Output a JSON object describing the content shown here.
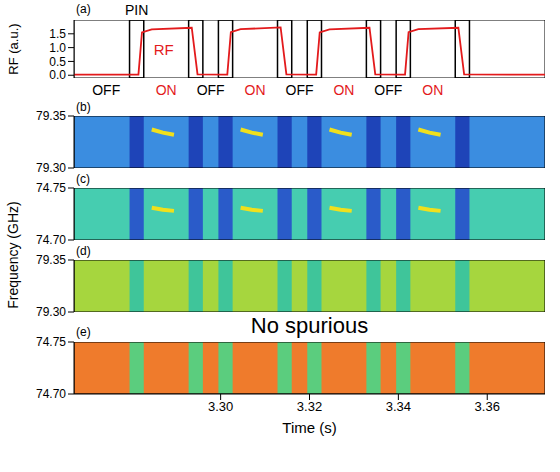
{
  "chart_data": [
    {
      "panel": "(a)",
      "type": "line",
      "ylabel": "RF (a.u.)",
      "annotations": [
        "PIN",
        "RF"
      ],
      "xlim": [
        3.267,
        3.373
      ],
      "xticks": [
        {
          "value": 3.3,
          "label": "3.30"
        },
        3.32,
        3.34,
        3.36
      ],
      "tick_labels": "y",
      "ylim": [
        -0.1,
        2.0
      ],
      "yticks": [
        {
          "value": 0,
          "label": "0.0"
        },
        0.5,
        {
          "value": 1,
          "label": "1.0"
        },
        1.5
      ],
      "series": [
        {
          "color": "#e31a1c",
          "x": [
            3.267,
            3.2815,
            3.2823,
            3.2845,
            3.2935,
            3.2948,
            3.3015,
            3.3023,
            3.3045,
            3.3135,
            3.3148,
            3.3215,
            3.3223,
            3.3245,
            3.3335,
            3.3348,
            3.3415,
            3.3423,
            3.3445,
            3.3535,
            3.3548,
            3.373
          ],
          "values": [
            0.02,
            0.02,
            1.55,
            1.66,
            1.72,
            0.03,
            0.02,
            1.56,
            1.67,
            1.73,
            0.03,
            0.02,
            1.55,
            1.66,
            1.72,
            0.03,
            0.02,
            1.56,
            1.67,
            1.72,
            0.03,
            0.02
          ]
        }
      ],
      "boxes": {
        "color": "#000000",
        "x": [
          [
            3.2795,
            3.2827
          ],
          [
            3.2928,
            3.296
          ],
          [
            3.2995,
            3.3027
          ],
          [
            3.3128,
            3.316
          ],
          [
            3.3195,
            3.3227
          ],
          [
            3.3328,
            3.336
          ],
          [
            3.3395,
            3.3427
          ],
          [
            3.3528,
            3.356
          ]
        ]
      },
      "states": [
        {
          "label": "OFF",
          "x": [
            3.267,
            3.2815
          ]
        },
        {
          "label": "ON",
          "x": [
            3.2815,
            3.294
          ]
        },
        {
          "label": "OFF",
          "x": [
            3.294,
            3.3015
          ]
        },
        {
          "label": "ON",
          "x": [
            3.3015,
            3.314
          ]
        },
        {
          "label": "OFF",
          "x": [
            3.314,
            3.3215
          ]
        },
        {
          "label": "ON",
          "x": [
            3.3215,
            3.334
          ]
        },
        {
          "label": "OFF",
          "x": [
            3.334,
            3.3415
          ]
        },
        {
          "label": "ON",
          "x": [
            3.3415,
            3.354
          ]
        }
      ]
    },
    {
      "panel": "(b)",
      "type": "heatmap",
      "color": "#3b8de0",
      "xlim": [
        3.267,
        3.373
      ],
      "xticks": [
        {
          "value": 3.3,
          "label": "3.30"
        },
        3.32,
        3.34,
        3.36
      ],
      "tick_labels": "y",
      "ylim": [
        79.3,
        79.35
      ],
      "yticks": [
        {
          "value": 79.3,
          "label": "79.30"
        },
        79.35
      ],
      "bands": {
        "color": "#1e44b8",
        "x": [
          [
            3.2795,
            3.2827
          ],
          [
            3.2928,
            3.296
          ],
          [
            3.2995,
            3.3027
          ],
          [
            3.3128,
            3.316
          ],
          [
            3.3195,
            3.3227
          ],
          [
            3.3328,
            3.336
          ],
          [
            3.3395,
            3.3427
          ],
          [
            3.3528,
            3.356
          ]
        ]
      },
      "series": [
        {
          "color": "#f0e01c",
          "x": [
            3.2845,
            3.287,
            3.2895
          ],
          "values": [
            79.337,
            79.334,
            79.332
          ]
        },
        {
          "color": "#f0e01c",
          "x": [
            3.3045,
            3.307,
            3.3095
          ],
          "values": [
            79.337,
            79.334,
            79.332
          ]
        },
        {
          "color": "#f0e01c",
          "x": [
            3.3245,
            3.327,
            3.3295
          ],
          "values": [
            79.337,
            79.334,
            79.332
          ]
        },
        {
          "color": "#f0e01c",
          "x": [
            3.3445,
            3.347,
            3.3495
          ],
          "values": [
            79.337,
            79.334,
            79.332
          ]
        }
      ]
    },
    {
      "panel": "(c)",
      "type": "heatmap",
      "color": "#46cdb0",
      "xlim": [
        3.267,
        3.373
      ],
      "xticks": [
        {
          "value": 3.3,
          "label": "3.30"
        },
        3.32,
        3.34,
        3.36
      ],
      "tick_labels": "y",
      "ylim": [
        74.7,
        74.75
      ],
      "yticks": [
        {
          "value": 74.7,
          "label": "74.70"
        },
        74.75
      ],
      "bands": {
        "color": "#2a5bc9",
        "x": [
          [
            3.2795,
            3.2827
          ],
          [
            3.2928,
            3.296
          ],
          [
            3.2995,
            3.3027
          ],
          [
            3.3128,
            3.316
          ],
          [
            3.3195,
            3.3227
          ],
          [
            3.3328,
            3.336
          ],
          [
            3.3395,
            3.3427
          ],
          [
            3.3528,
            3.356
          ]
        ]
      },
      "series": [
        {
          "color": "#f0e01c",
          "x": [
            3.2845,
            3.287,
            3.2895
          ],
          "values": [
            74.731,
            74.729,
            74.728
          ]
        },
        {
          "color": "#f0e01c",
          "x": [
            3.3045,
            3.307,
            3.3095
          ],
          "values": [
            74.731,
            74.729,
            74.728
          ]
        },
        {
          "color": "#f0e01c",
          "x": [
            3.3245,
            3.327,
            3.3295
          ],
          "values": [
            74.731,
            74.729,
            74.728
          ]
        },
        {
          "color": "#f0e01c",
          "x": [
            3.3445,
            3.347,
            3.3495
          ],
          "values": [
            74.731,
            74.729,
            74.728
          ]
        }
      ]
    },
    {
      "panel": "(d)",
      "type": "heatmap",
      "color": "#a6d63e",
      "annotations": [
        "No spurious"
      ],
      "xlim": [
        3.267,
        3.373
      ],
      "xticks": [
        {
          "value": 3.3,
          "label": "3.30"
        },
        3.32,
        3.34,
        3.36
      ],
      "tick_labels": "y",
      "ylim": [
        79.3,
        79.35
      ],
      "yticks": [
        {
          "value": 79.3,
          "label": "79.30"
        },
        79.35
      ],
      "bands": {
        "color": "#3fc59a",
        "x": [
          [
            3.2795,
            3.2827
          ],
          [
            3.2928,
            3.296
          ],
          [
            3.2995,
            3.3027
          ],
          [
            3.3128,
            3.316
          ],
          [
            3.3195,
            3.3227
          ],
          [
            3.3328,
            3.336
          ],
          [
            3.3395,
            3.3427
          ],
          [
            3.3528,
            3.356
          ]
        ]
      }
    },
    {
      "panel": "(e)",
      "type": "heatmap",
      "color": "#ef7b2c",
      "xlabel": "Time (s)",
      "xlim": [
        3.267,
        3.373
      ],
      "xticks": [
        {
          "value": 3.3,
          "label": "3.30"
        },
        3.32,
        3.34,
        3.36
      ],
      "ylim": [
        74.7,
        74.75
      ],
      "yticks": [
        {
          "value": 74.7,
          "label": "74.70"
        },
        74.75
      ],
      "bands": {
        "color": "#5bcd7e",
        "x": [
          [
            3.2795,
            3.2827
          ],
          [
            3.2928,
            3.296
          ],
          [
            3.2995,
            3.3027
          ],
          [
            3.3128,
            3.316
          ],
          [
            3.3195,
            3.3227
          ],
          [
            3.3328,
            3.336
          ],
          [
            3.3395,
            3.3427
          ],
          [
            3.3528,
            3.356
          ]
        ]
      }
    }
  ],
  "ylabel": "Frequency (GHz)"
}
